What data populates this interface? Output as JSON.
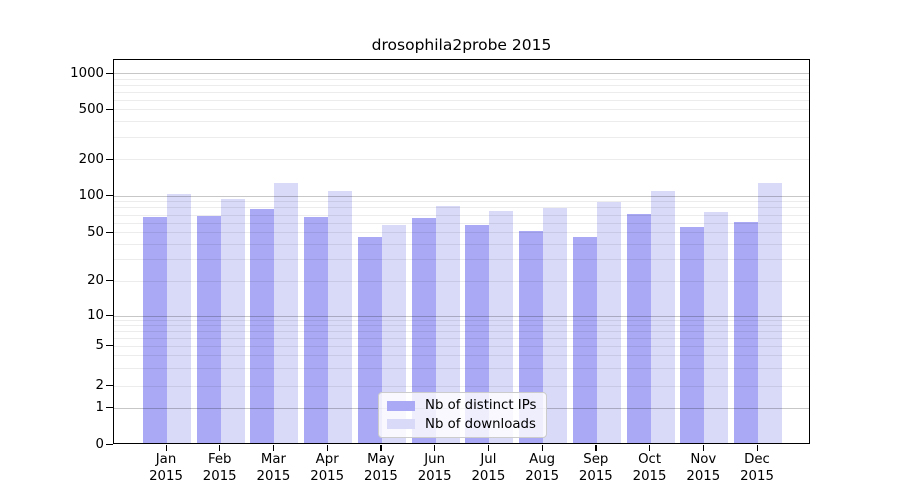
{
  "chart_data": {
    "type": "bar",
    "title": "drosophila2probe 2015",
    "categories": [
      "Jan",
      "Feb",
      "Mar",
      "Apr",
      "May",
      "Jun",
      "Jul",
      "Aug",
      "Sep",
      "Oct",
      "Nov",
      "Dec"
    ],
    "x_tick_year": "2015",
    "series": [
      {
        "name": "Nb of distinct IPs",
        "color": "#a9a9f5",
        "values": [
          65,
          67,
          76,
          66,
          45,
          64,
          56,
          50,
          45,
          70,
          54,
          60
        ]
      },
      {
        "name": "Nb of downloads",
        "color": "#d9daf8",
        "values": [
          101,
          93,
          125,
          107,
          56,
          81,
          73,
          78,
          87,
          107,
          72,
          125
        ]
      }
    ],
    "yticks": [
      0,
      1,
      2,
      5,
      10,
      20,
      50,
      100,
      200,
      500,
      1000
    ],
    "yscale": "log",
    "ylim": [
      0,
      1350
    ],
    "grid": true,
    "legend_position": "lower center",
    "axis_color": "#000000",
    "gridline_major_color": "#c7c7c7",
    "gridline_minor_color": "#ececec",
    "background_color": "#ffffff"
  }
}
